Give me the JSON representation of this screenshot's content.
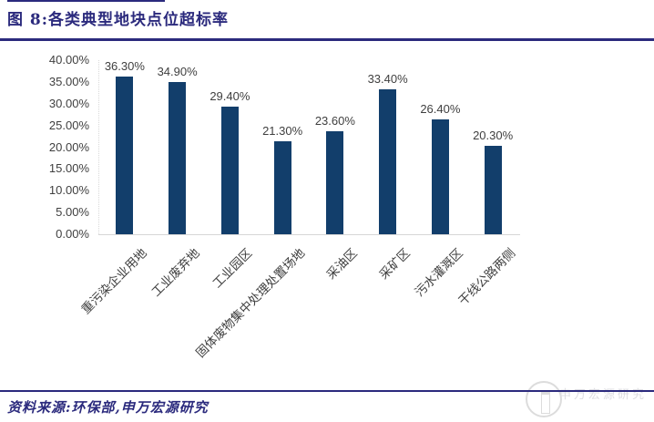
{
  "header": {
    "title": "图 8:各类典型地块点位超标率"
  },
  "footer": {
    "source": "资料来源:环保部,申万宏源研究"
  },
  "watermark": {
    "text": "申万宏源研究"
  },
  "colors": {
    "accent_navy": "#2b2a7d",
    "bar_navy": "#123e6b",
    "axis_text": "#3f3f3f",
    "axis_line": "#d6d6d6"
  },
  "chart_data": {
    "type": "bar",
    "title": "图 8:各类典型地块点位超标率",
    "categories": [
      "重污染企业用地",
      "工业废弃地",
      "工业园区",
      "固体废物集中处理处置场地",
      "采油区",
      "采矿区",
      "污水灌溉区",
      "干线公路两侧"
    ],
    "values": [
      36.3,
      34.9,
      29.4,
      21.3,
      23.6,
      33.4,
      26.4,
      20.3
    ],
    "value_labels": [
      "36.30%",
      "34.90%",
      "29.40%",
      "21.30%",
      "23.60%",
      "33.40%",
      "26.40%",
      "20.30%"
    ],
    "xlabel": "",
    "ylabel": "",
    "ylim": [
      0,
      40
    ],
    "ytick_step": 5,
    "ytick_labels": [
      "40.00%",
      "35.00%",
      "30.00%",
      "25.00%",
      "20.00%",
      "15.00%",
      "10.00%",
      "5.00%",
      "0.00%"
    ],
    "grid": false,
    "legend": false,
    "bar_color": "#123e6b",
    "label_color": "#3f3f3f"
  }
}
